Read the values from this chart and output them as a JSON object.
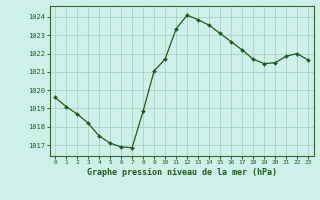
{
  "x": [
    0,
    1,
    2,
    3,
    4,
    5,
    6,
    7,
    8,
    9,
    10,
    11,
    12,
    13,
    14,
    15,
    16,
    17,
    18,
    19,
    20,
    21,
    22,
    23
  ],
  "y": [
    1019.6,
    1019.1,
    1018.7,
    1018.2,
    1017.5,
    1017.1,
    1016.9,
    1016.85,
    1018.85,
    1021.05,
    1021.7,
    1023.35,
    1024.1,
    1023.85,
    1023.55,
    1023.1,
    1022.65,
    1022.2,
    1021.7,
    1021.45,
    1021.5,
    1021.85,
    1022.0,
    1021.65
  ],
  "line_color": "#1e5c1e",
  "marker_color": "#1e5c1e",
  "bg_color": "#cdf0e8",
  "grid_color": "#9ecfbf",
  "xlabel": "Graphe pression niveau de la mer (hPa)",
  "xlabel_color": "#1e5c1e",
  "ylabel_ticks": [
    1017,
    1018,
    1019,
    1020,
    1021,
    1022,
    1023,
    1024
  ],
  "ylim": [
    1016.4,
    1024.6
  ],
  "xlim": [
    -0.5,
    23.5
  ],
  "tick_color": "#1e5c1e",
  "axis_color": "#336633",
  "figsize": [
    3.2,
    2.0
  ],
  "dpi": 100
}
